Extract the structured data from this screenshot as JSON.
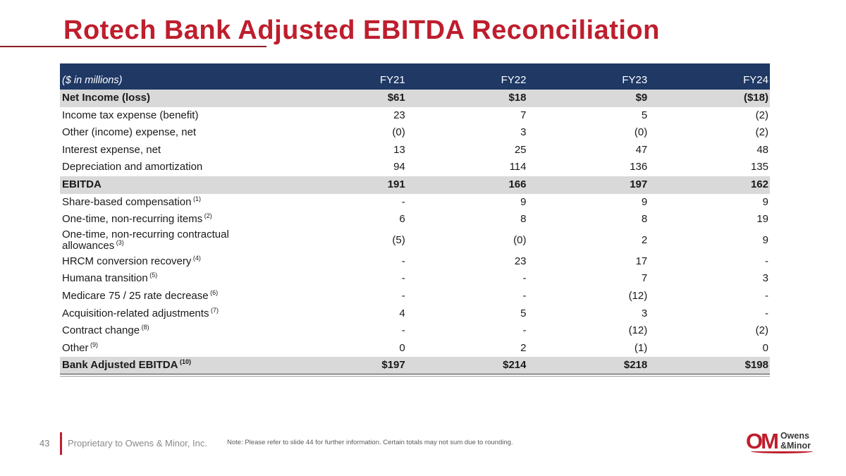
{
  "page": {
    "title": "Rotech Bank Adjusted EBITDA Reconciliation",
    "page_number": "43",
    "footer_left": "Proprietary to Owens & Minor, Inc.",
    "footer_note": "Note: Please refer to slide 44 for further information. Certain totals may not sum due to rounding.",
    "logo": {
      "mark": "OM",
      "line1": "Owens",
      "line2": "&Minor"
    }
  },
  "colors": {
    "title_red": "#BE1E2D",
    "header_navy": "#1F3864",
    "emphasis_gray": "#D9D9D9",
    "logo_red": "#BE1E2D"
  },
  "chart_data": {
    "type": "table",
    "title": "Rotech Bank Adjusted EBITDA Reconciliation",
    "units": "($ in millions)",
    "columns": [
      "($ in millions)",
      "FY21",
      "FY22",
      "FY23",
      "FY24"
    ],
    "rows": [
      {
        "label": "Net Income (loss)",
        "sup": "",
        "values": [
          "$61",
          "$18",
          "$9",
          "($18)"
        ],
        "emphasis": true
      },
      {
        "label": "Income tax expense (benefit)",
        "sup": "",
        "values": [
          "23",
          "7",
          "5",
          "(2)"
        ],
        "emphasis": false
      },
      {
        "label": "Other (income) expense, net",
        "sup": "",
        "values": [
          "(0)",
          "3",
          "(0)",
          "(2)"
        ],
        "emphasis": false
      },
      {
        "label": "Interest expense, net",
        "sup": "",
        "values": [
          "13",
          "25",
          "47",
          "48"
        ],
        "emphasis": false
      },
      {
        "label": "Depreciation and amortization",
        "sup": "",
        "values": [
          "94",
          "114",
          "136",
          "135"
        ],
        "emphasis": false
      },
      {
        "label": "EBITDA",
        "sup": "",
        "values": [
          "191",
          "166",
          "197",
          "162"
        ],
        "emphasis": true
      },
      {
        "label": "Share-based compensation",
        "sup": "(1)",
        "values": [
          "-",
          "9",
          "9",
          "9"
        ],
        "emphasis": false
      },
      {
        "label": "One-time, non-recurring items",
        "sup": "(2)",
        "values": [
          "6",
          "8",
          "8",
          "19"
        ],
        "emphasis": false
      },
      {
        "label": "One-time, non-recurring contractual allowances",
        "sup": "(3)",
        "values": [
          "(5)",
          "(0)",
          "2",
          "9"
        ],
        "emphasis": false
      },
      {
        "label": "HRCM conversion recovery",
        "sup": "(4)",
        "values": [
          "-",
          "23",
          "17",
          "-"
        ],
        "emphasis": false
      },
      {
        "label": "Humana transition",
        "sup": "(5)",
        "values": [
          "-",
          "-",
          "7",
          "3"
        ],
        "emphasis": false
      },
      {
        "label": "Medicare 75 / 25 rate decrease",
        "sup": "(6)",
        "values": [
          "-",
          "-",
          "(12)",
          "-"
        ],
        "emphasis": false
      },
      {
        "label": "Acquisition-related adjustments",
        "sup": "(7)",
        "values": [
          "4",
          "5",
          "3",
          "-"
        ],
        "emphasis": false
      },
      {
        "label": "Contract change",
        "sup": "(8)",
        "values": [
          "-",
          "-",
          "(12)",
          "(2)"
        ],
        "emphasis": false
      },
      {
        "label": "Other",
        "sup": "(9)",
        "values": [
          "0",
          "2",
          "(1)",
          "0"
        ],
        "emphasis": false
      },
      {
        "label": "Bank Adjusted EBITDA",
        "sup": "(10)",
        "values": [
          "$197",
          "$214",
          "$218",
          "$198"
        ],
        "emphasis": true
      }
    ]
  }
}
